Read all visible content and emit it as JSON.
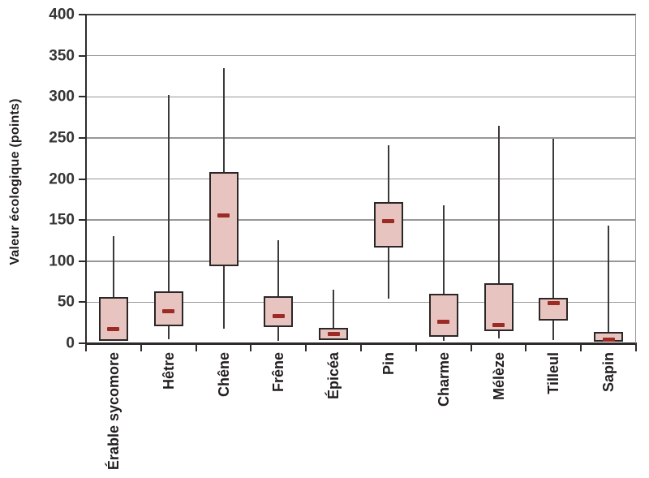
{
  "chart_data": {
    "type": "boxplot",
    "title": "",
    "xlabel": "",
    "ylabel": "Valeur écologique (points)",
    "ylim": [
      0,
      400
    ],
    "ytick_step": 50,
    "ytick_labels": [
      "0",
      "50",
      "100",
      "150",
      "200",
      "250",
      "300",
      "350",
      "400"
    ],
    "grid": "horizontal",
    "legend": "none",
    "categories": [
      "Érable sycomore",
      "Hêtre",
      "Chêne",
      "Frêne",
      "Épicéa",
      "Pin",
      "Charme",
      "Mélèze",
      "Tilleul",
      "Sapin"
    ],
    "series": [
      {
        "name": "Érable sycomore",
        "low": 3,
        "q1": 3,
        "median": 17,
        "q3": 56,
        "high": 130
      },
      {
        "name": "Hêtre",
        "low": 5,
        "q1": 21,
        "median": 39,
        "q3": 63,
        "high": 302
      },
      {
        "name": "Chêne",
        "low": 18,
        "q1": 94,
        "median": 156,
        "q3": 208,
        "high": 335
      },
      {
        "name": "Frêne",
        "low": 3,
        "q1": 20,
        "median": 33,
        "q3": 57,
        "high": 125
      },
      {
        "name": "Épicéa",
        "low": 4,
        "q1": 4,
        "median": 11,
        "q3": 19,
        "high": 65
      },
      {
        "name": "Pin",
        "low": 54,
        "q1": 116,
        "median": 149,
        "q3": 172,
        "high": 241
      },
      {
        "name": "Charme",
        "low": 3,
        "q1": 8,
        "median": 26,
        "q3": 60,
        "high": 168
      },
      {
        "name": "Mélèze",
        "low": 6,
        "q1": 15,
        "median": 22,
        "q3": 73,
        "high": 265
      },
      {
        "name": "Tilleul",
        "low": 4,
        "q1": 28,
        "median": 49,
        "q3": 55,
        "high": 249
      },
      {
        "name": "Sapin",
        "low": 2,
        "q1": 2,
        "median": 4,
        "q3": 14,
        "high": 143
      }
    ],
    "colors": {
      "box_fill": "#e7c4c0",
      "box_border": "#2c2727",
      "median": "#9b2b24",
      "whisker": "#3d393a",
      "gridline": "#979797",
      "axis": "#2e2a2b",
      "plot_right_border": "#9a9a9a",
      "text": "#221d1e",
      "background": "#ffffff"
    }
  }
}
